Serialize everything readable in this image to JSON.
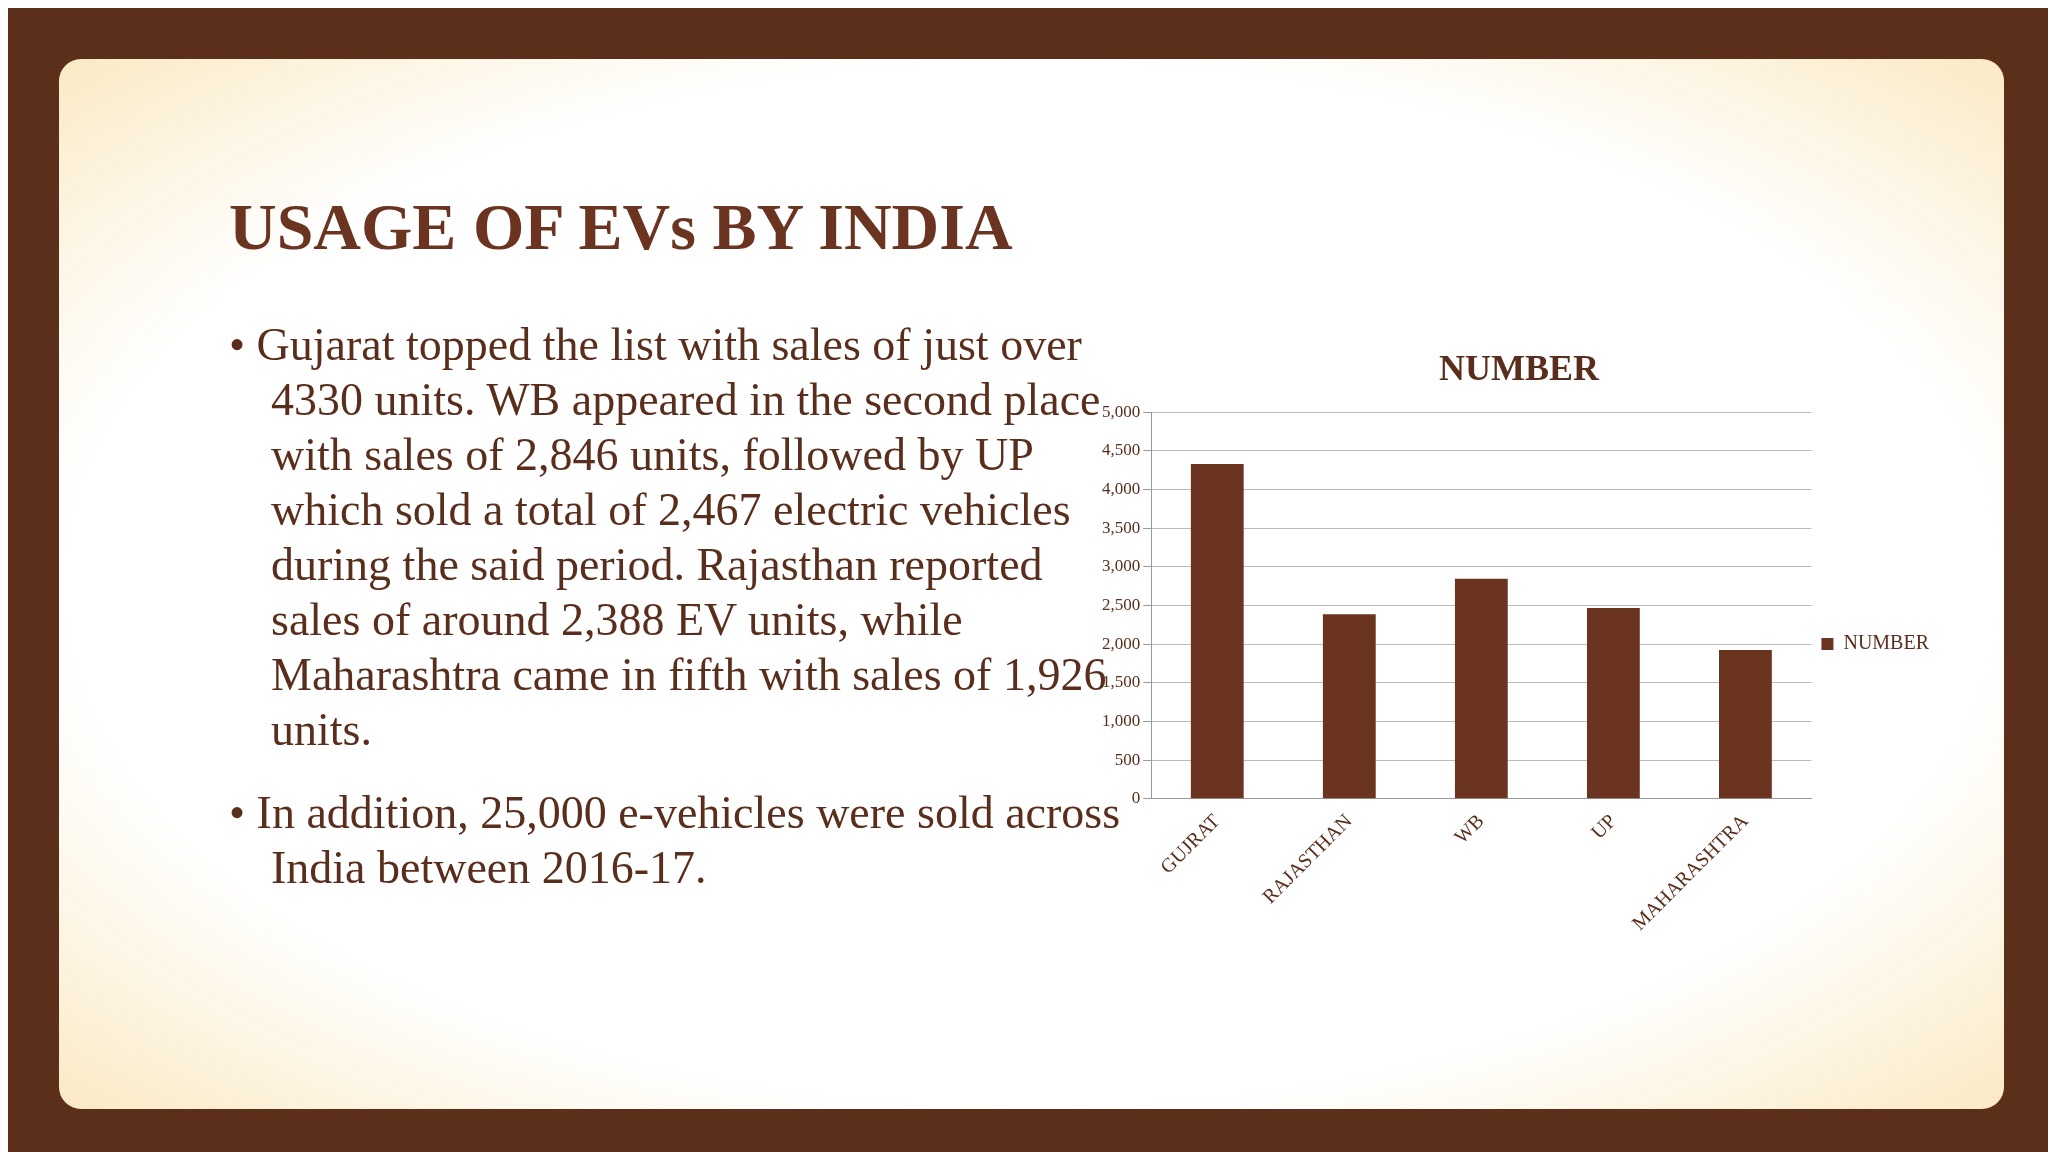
{
  "chart_data": {
    "type": "bar",
    "title": "USAGE OF EVs BY INDIA",
    "subtitle": "NUMBER",
    "annotations": [
      "• Gujarat topped the list with sales of just over 4330 units. WB appeared in the second place with sales of 2,846 units, followed by UP which sold a total of 2,467 electric vehicles during the said period. Rajasthan reported sales of around 2,388 EV units, while Maharashtra came in fifth with sales of 1,926 units.",
      "• In addition, 25,000 e-vehicles were sold across India between 2016-17."
    ],
    "categories": [
      "GUJRAT",
      "RAJASTHAN",
      "WB",
      "UP",
      "MAHARASHTRA"
    ],
    "series": [
      {
        "name": "NUMBER",
        "color": "#6b3420",
        "values": [
          4330,
          2388,
          2846,
          2467,
          1926
        ]
      }
    ],
    "ylim": [
      0,
      5000
    ],
    "yticks": [
      0,
      500,
      {
        "value": 1000,
        "label": "1,000"
      },
      {
        "value": 1500,
        "label": "1,500"
      },
      {
        "value": 2000,
        "label": "2,000"
      },
      {
        "value": 2500,
        "label": "2,500"
      },
      {
        "value": 3000,
        "label": "3,000"
      },
      {
        "value": 3500,
        "label": "3,500"
      },
      {
        "value": 4000,
        "label": "4,000"
      },
      {
        "value": 4500,
        "label": "4,500"
      },
      {
        "value": 5000,
        "label": "5,000"
      }
    ],
    "grid": "y",
    "legend": "right"
  }
}
